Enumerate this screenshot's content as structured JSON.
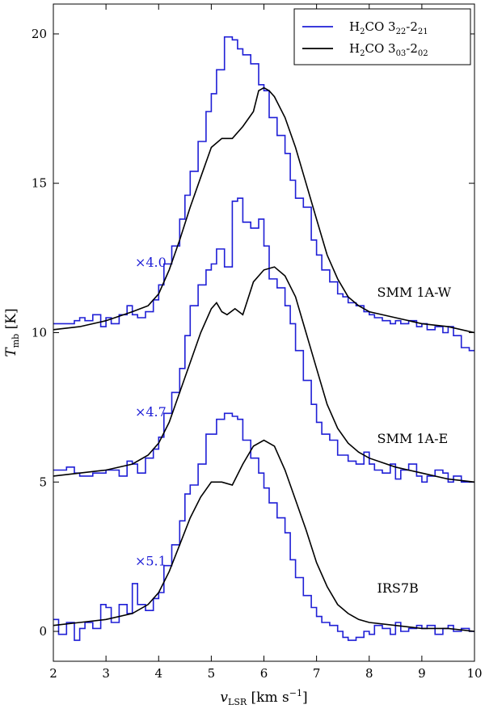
{
  "chart_data": {
    "type": "line",
    "title": "",
    "xlabel": "v_LSR [km s^-1]",
    "xlabel_main": "v",
    "xlabel_sub": "LSR",
    "xlabel_units": "[km s",
    "xlabel_exp": "−1",
    "xlabel_close": "]",
    "ylabel": "T_mb [K]",
    "ylabel_main": "T",
    "ylabel_sub": "mb",
    "ylabel_units": "[K]",
    "xlim": [
      2,
      10
    ],
    "ylim": [
      -1,
      21
    ],
    "xticks": [
      2,
      3,
      4,
      5,
      6,
      7,
      8,
      9,
      10
    ],
    "yticks": [
      0,
      5,
      10,
      15,
      20
    ],
    "colors": {
      "h2co_322": "#1f1fd6",
      "h2co_303": "#000000"
    },
    "legend": {
      "placement": "top-right",
      "entries": [
        {
          "key": "h2co_322",
          "label_main": "H",
          "label_sub": "2",
          "label_mid": "CO 3",
          "label_sub2": "22",
          "label_dash": "-2",
          "label_sub3": "21"
        },
        {
          "key": "h2co_303",
          "label_main": "H",
          "label_sub": "2",
          "label_mid": "CO 3",
          "label_sub2": "03",
          "label_dash": "-2",
          "label_sub3": "02"
        }
      ]
    },
    "annotations": [
      {
        "text": "×4.0",
        "x": 3.55,
        "y": 12.2,
        "color": "#1f1fd6"
      },
      {
        "text": "×4.7",
        "x": 3.55,
        "y": 7.2,
        "color": "#1f1fd6"
      },
      {
        "text": "×5.1",
        "x": 3.55,
        "y": 2.2,
        "color": "#1f1fd6"
      },
      {
        "text": "SMM 1A-W",
        "x": 8.15,
        "y": 11.2,
        "color": "#000000"
      },
      {
        "text": "SMM 1A-E",
        "x": 8.15,
        "y": 6.3,
        "color": "#000000"
      },
      {
        "text": "IRS7B",
        "x": 8.15,
        "y": 1.3,
        "color": "#000000"
      }
    ],
    "series": [
      {
        "name": "SMM 1A-W H2CO 3_22-2_21 (x4.0)",
        "color": "#1f1fd6",
        "step": true,
        "x": [
          2.0,
          2.4,
          2.5,
          2.6,
          2.75,
          2.9,
          3.0,
          3.1,
          3.25,
          3.4,
          3.5,
          3.6,
          3.75,
          3.9,
          4.0,
          4.1,
          4.25,
          4.4,
          4.5,
          4.6,
          4.75,
          4.9,
          5.0,
          5.1,
          5.25,
          5.4,
          5.5,
          5.6,
          5.75,
          5.9,
          6.0,
          6.1,
          6.25,
          6.4,
          6.5,
          6.6,
          6.75,
          6.9,
          7.0,
          7.1,
          7.25,
          7.4,
          7.5,
          7.6,
          7.75,
          7.9,
          8.0,
          8.1,
          8.25,
          8.4,
          8.5,
          8.6,
          8.75,
          8.9,
          9.0,
          9.1,
          9.25,
          9.4,
          9.5,
          9.6,
          9.75,
          9.9,
          10.0
        ],
        "y": [
          10.3,
          10.4,
          10.5,
          10.4,
          10.6,
          10.2,
          10.5,
          10.3,
          10.6,
          10.9,
          10.6,
          10.5,
          10.7,
          11.1,
          11.6,
          12.3,
          12.9,
          13.8,
          14.6,
          15.4,
          16.4,
          17.4,
          18.0,
          18.8,
          19.9,
          19.8,
          19.5,
          19.3,
          19.0,
          18.3,
          18.1,
          17.2,
          16.6,
          16.0,
          15.1,
          14.5,
          14.2,
          13.1,
          12.6,
          12.1,
          11.7,
          11.3,
          11.2,
          11.0,
          10.9,
          10.7,
          10.6,
          10.5,
          10.4,
          10.3,
          10.4,
          10.3,
          10.4,
          10.2,
          10.3,
          10.1,
          10.2,
          10.0,
          10.2,
          9.9,
          9.5,
          9.4,
          9.4
        ]
      },
      {
        "name": "SMM 1A-W H2CO 3_03-2_02",
        "color": "#000000",
        "step": false,
        "x": [
          2.0,
          2.5,
          3.0,
          3.5,
          3.8,
          4.0,
          4.2,
          4.4,
          4.6,
          4.8,
          5.0,
          5.2,
          5.4,
          5.6,
          5.8,
          5.9,
          6.0,
          6.1,
          6.2,
          6.4,
          6.6,
          6.8,
          7.0,
          7.2,
          7.4,
          7.6,
          7.8,
          8.0,
          8.5,
          9.0,
          9.5,
          10.0
        ],
        "y": [
          10.1,
          10.2,
          10.4,
          10.7,
          10.9,
          11.3,
          12.1,
          13.1,
          14.2,
          15.2,
          16.2,
          16.5,
          16.5,
          16.9,
          17.4,
          18.1,
          18.2,
          18.1,
          17.9,
          17.2,
          16.2,
          15.0,
          13.8,
          12.6,
          11.8,
          11.2,
          10.9,
          10.7,
          10.5,
          10.3,
          10.2,
          10.0
        ]
      },
      {
        "name": "SMM 1A-E H2CO 3_22-2_21 (x4.7)",
        "color": "#1f1fd6",
        "step": true,
        "x": [
          2.0,
          2.25,
          2.4,
          2.5,
          2.6,
          2.75,
          2.9,
          3.0,
          3.1,
          3.25,
          3.4,
          3.5,
          3.6,
          3.75,
          3.9,
          4.0,
          4.1,
          4.25,
          4.4,
          4.5,
          4.6,
          4.75,
          4.9,
          5.0,
          5.1,
          5.25,
          5.4,
          5.5,
          5.6,
          5.75,
          5.9,
          6.0,
          6.1,
          6.25,
          6.4,
          6.5,
          6.6,
          6.75,
          6.9,
          7.0,
          7.1,
          7.25,
          7.4,
          7.5,
          7.6,
          7.75,
          7.9,
          8.0,
          8.1,
          8.25,
          8.4,
          8.5,
          8.6,
          8.75,
          8.9,
          9.0,
          9.1,
          9.25,
          9.4,
          9.5,
          9.6,
          9.75,
          9.9,
          10.0
        ],
        "y": [
          5.4,
          5.5,
          5.3,
          5.2,
          5.2,
          5.3,
          5.3,
          5.4,
          5.4,
          5.2,
          5.7,
          5.6,
          5.3,
          5.8,
          6.1,
          6.5,
          7.3,
          8.0,
          8.8,
          9.9,
          10.9,
          11.6,
          12.1,
          12.3,
          12.8,
          12.2,
          14.4,
          14.5,
          13.7,
          13.5,
          13.8,
          12.9,
          11.8,
          11.5,
          10.9,
          10.3,
          9.4,
          8.4,
          7.6,
          7.0,
          6.6,
          6.4,
          5.9,
          5.9,
          5.7,
          5.6,
          6.0,
          5.6,
          5.4,
          5.3,
          5.6,
          5.1,
          5.4,
          5.6,
          5.2,
          5.0,
          5.2,
          5.4,
          5.3,
          5.0,
          5.2,
          5.0,
          5.0,
          5.0
        ]
      },
      {
        "name": "SMM 1A-E H2CO 3_03-2_02",
        "color": "#000000",
        "step": false,
        "x": [
          2.0,
          2.5,
          3.0,
          3.5,
          3.8,
          4.0,
          4.2,
          4.4,
          4.6,
          4.8,
          5.0,
          5.1,
          5.2,
          5.3,
          5.45,
          5.6,
          5.8,
          6.0,
          6.2,
          6.4,
          6.6,
          6.8,
          7.0,
          7.2,
          7.4,
          7.6,
          7.8,
          8.0,
          8.5,
          9.0,
          9.5,
          10.0
        ],
        "y": [
          5.2,
          5.3,
          5.4,
          5.6,
          5.9,
          6.3,
          7.0,
          8.0,
          9.0,
          10.0,
          10.8,
          11.0,
          10.7,
          10.6,
          10.8,
          10.6,
          11.7,
          12.1,
          12.2,
          11.9,
          11.2,
          10.0,
          8.8,
          7.6,
          6.8,
          6.3,
          6.0,
          5.8,
          5.5,
          5.3,
          5.1,
          5.0
        ]
      },
      {
        "name": "IRS7B H2CO 3_22-2_21 (x5.1)",
        "color": "#1f1fd6",
        "step": true,
        "x": [
          2.0,
          2.1,
          2.25,
          2.4,
          2.5,
          2.6,
          2.75,
          2.9,
          3.0,
          3.1,
          3.25,
          3.4,
          3.5,
          3.6,
          3.75,
          3.9,
          4.0,
          4.1,
          4.25,
          4.4,
          4.5,
          4.6,
          4.75,
          4.9,
          5.0,
          5.1,
          5.25,
          5.4,
          5.5,
          5.6,
          5.75,
          5.9,
          6.0,
          6.1,
          6.25,
          6.4,
          6.5,
          6.6,
          6.75,
          6.9,
          7.0,
          7.1,
          7.25,
          7.4,
          7.5,
          7.6,
          7.75,
          7.9,
          8.0,
          8.1,
          8.25,
          8.4,
          8.5,
          8.6,
          8.75,
          8.9,
          9.0,
          9.1,
          9.25,
          9.4,
          9.5,
          9.6,
          9.75,
          9.9,
          10.0
        ],
        "y": [
          0.4,
          -0.1,
          0.3,
          -0.3,
          0.1,
          0.3,
          0.1,
          0.9,
          0.8,
          0.3,
          0.9,
          0.6,
          1.6,
          0.9,
          0.7,
          1.1,
          1.3,
          2.2,
          2.9,
          3.7,
          4.6,
          4.9,
          5.6,
          6.6,
          6.6,
          7.1,
          7.3,
          7.2,
          7.1,
          6.4,
          5.8,
          5.3,
          4.8,
          4.3,
          3.8,
          3.3,
          2.4,
          1.8,
          1.2,
          0.8,
          0.5,
          0.3,
          0.2,
          0.0,
          -0.2,
          -0.3,
          -0.2,
          0.0,
          -0.1,
          0.2,
          0.1,
          -0.1,
          0.3,
          0.0,
          0.1,
          0.2,
          0.1,
          0.2,
          -0.1,
          0.1,
          0.2,
          0.0,
          0.1,
          0.0,
          0.0
        ]
      },
      {
        "name": "IRS7B H2CO 3_03-2_02",
        "color": "#000000",
        "step": false,
        "x": [
          2.0,
          2.5,
          3.0,
          3.5,
          3.8,
          4.0,
          4.2,
          4.4,
          4.6,
          4.8,
          5.0,
          5.2,
          5.4,
          5.6,
          5.8,
          6.0,
          6.2,
          6.4,
          6.6,
          6.8,
          7.0,
          7.2,
          7.4,
          7.6,
          7.8,
          8.0,
          8.5,
          9.0,
          9.5,
          10.0
        ],
        "y": [
          0.2,
          0.3,
          0.4,
          0.6,
          0.9,
          1.3,
          2.0,
          2.9,
          3.8,
          4.5,
          5.0,
          5.0,
          4.9,
          5.6,
          6.2,
          6.4,
          6.2,
          5.4,
          4.4,
          3.4,
          2.3,
          1.5,
          0.9,
          0.6,
          0.4,
          0.3,
          0.2,
          0.1,
          0.1,
          0.0
        ]
      }
    ]
  }
}
